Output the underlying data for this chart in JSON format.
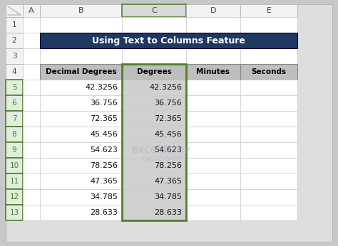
{
  "title": "Using Text to Columns Feature",
  "title_bg": "#1F3864",
  "title_fg": "#FFFFFF",
  "col_headers": [
    "Decimal Degrees",
    "Degrees",
    "Minutes",
    "Seconds"
  ],
  "header_bg": "#BEBEBE",
  "data_rows": [
    [
      "42.3256",
      "42.3256"
    ],
    [
      "36.756",
      "36.756"
    ],
    [
      "72.365",
      "72.365"
    ],
    [
      "45.456",
      "45.456"
    ],
    [
      "54.623",
      "54.623"
    ],
    [
      "78.256",
      "78.256"
    ],
    [
      "47.365",
      "47.365"
    ],
    [
      "34.785",
      "34.785"
    ],
    [
      "28.633",
      "28.633"
    ]
  ],
  "col_c_bg": "#D0D0D0",
  "col_c_border": "#507E32",
  "excel_outer_bg": "#DEDEDE",
  "excel_bg": "#FFFFFF",
  "row_header_bg": "#F2F2F2",
  "row_number_selected_bg": "#E2EDDA",
  "row_number_selected_fg": "#507E32",
  "col_c_header_bg": "#D9D9D9",
  "col_c_header_border": "#507E32",
  "selected_rows": [
    5,
    6,
    7,
    8,
    9,
    10,
    11,
    12,
    13
  ],
  "col_letters": [
    "A",
    "B",
    "C",
    "D",
    "E"
  ],
  "n_rows": 13,
  "watermark_text": "exceldemy",
  "watermark_sub": "EXCEL DATA",
  "watermark_color": "#9999BB",
  "watermark_alpha": 0.35,
  "fig_bg": "#C8C8C8"
}
